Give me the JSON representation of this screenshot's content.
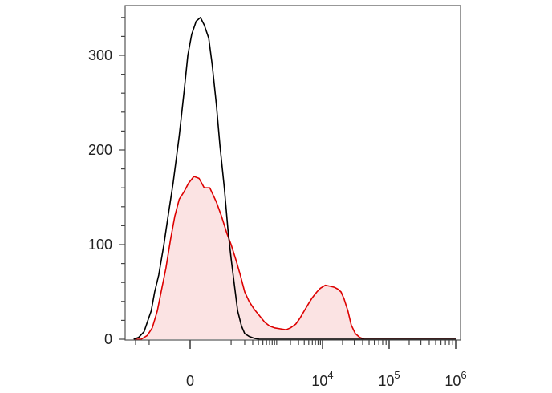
{
  "chart_data": {
    "type": "area",
    "x_scale": "biexponential",
    "xlim": [
      -300,
      1000000
    ],
    "ylim": [
      0,
      350
    ],
    "grid": false,
    "legend": "none",
    "y_ticks": [
      {
        "value": 0,
        "label": "0"
      },
      {
        "value": 100,
        "label": "100"
      },
      {
        "value": 200,
        "label": "200"
      },
      {
        "value": 300,
        "label": "300"
      }
    ],
    "x_ticks": [
      {
        "value": 0,
        "base": "0",
        "exp": ""
      },
      {
        "value": 10000,
        "base": "10",
        "exp": "4"
      },
      {
        "value": 100000,
        "base": "10",
        "exp": "5"
      },
      {
        "value": 1000000,
        "base": "10",
        "exp": "6"
      }
    ],
    "series": [
      {
        "color": "#000000",
        "fill": "none",
        "points": [
          [
            -220,
            0
          ],
          [
            -170,
            2
          ],
          [
            -130,
            8
          ],
          [
            -110,
            18
          ],
          [
            -90,
            30
          ],
          [
            -75,
            50
          ],
          [
            -60,
            68
          ],
          [
            -45,
            100
          ],
          [
            -35,
            130
          ],
          [
            -25,
            165
          ],
          [
            -15,
            215
          ],
          [
            -8,
            262
          ],
          [
            -3,
            300
          ],
          [
            2,
            322
          ],
          [
            8,
            336
          ],
          [
            14,
            340
          ],
          [
            20,
            332
          ],
          [
            28,
            318
          ],
          [
            35,
            290
          ],
          [
            45,
            248
          ],
          [
            55,
            205
          ],
          [
            70,
            160
          ],
          [
            85,
            115
          ],
          [
            100,
            85
          ],
          [
            120,
            55
          ],
          [
            140,
            30
          ],
          [
            170,
            14
          ],
          [
            200,
            6
          ],
          [
            250,
            3
          ],
          [
            320,
            1
          ],
          [
            420,
            0
          ],
          [
            600,
            0
          ],
          [
            1000000,
            0
          ]
        ]
      },
      {
        "color": "#dd0000",
        "fill": "#fbe3e3",
        "points": [
          [
            -220,
            0
          ],
          [
            -150,
            0
          ],
          [
            -110,
            4
          ],
          [
            -85,
            12
          ],
          [
            -65,
            30
          ],
          [
            -50,
            55
          ],
          [
            -40,
            75
          ],
          [
            -30,
            105
          ],
          [
            -22,
            130
          ],
          [
            -15,
            148
          ],
          [
            -8,
            156
          ],
          [
            -2,
            165
          ],
          [
            5,
            172
          ],
          [
            12,
            170
          ],
          [
            20,
            160
          ],
          [
            30,
            160
          ],
          [
            45,
            145
          ],
          [
            60,
            130
          ],
          [
            80,
            112
          ],
          [
            100,
            100
          ],
          [
            130,
            83
          ],
          [
            160,
            68
          ],
          [
            200,
            50
          ],
          [
            250,
            40
          ],
          [
            320,
            32
          ],
          [
            420,
            25
          ],
          [
            550,
            18
          ],
          [
            700,
            14
          ],
          [
            900,
            12
          ],
          [
            1200,
            11
          ],
          [
            1600,
            10
          ],
          [
            2000,
            12
          ],
          [
            2600,
            16
          ],
          [
            3200,
            22
          ],
          [
            4000,
            30
          ],
          [
            5000,
            38
          ],
          [
            6000,
            44
          ],
          [
            7500,
            50
          ],
          [
            9000,
            54
          ],
          [
            11000,
            57
          ],
          [
            13000,
            56
          ],
          [
            15000,
            55
          ],
          [
            17000,
            53
          ],
          [
            19000,
            50
          ],
          [
            21000,
            43
          ],
          [
            24000,
            30
          ],
          [
            27000,
            15
          ],
          [
            31000,
            6
          ],
          [
            36000,
            2
          ],
          [
            42000,
            0
          ],
          [
            1000000,
            0
          ]
        ]
      }
    ]
  }
}
